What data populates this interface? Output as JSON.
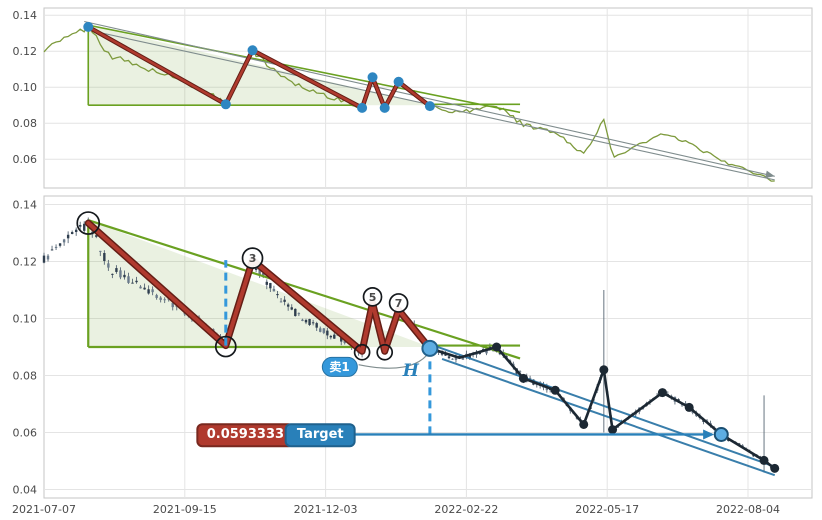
{
  "chart_data": {
    "type": "candlestick",
    "title": "",
    "x_ticks": [
      "2021-07-07",
      "2021-09-15",
      "2021-12-03",
      "2022-02-22",
      "2022-05-17",
      "2022-08-04"
    ],
    "overview": {
      "y_ticks": [
        0.14,
        0.12,
        0.1,
        0.08,
        0.06
      ],
      "y_domain": [
        0.044,
        0.144
      ],
      "grid": true
    },
    "main": {
      "y_ticks": [
        0.14,
        0.12,
        0.1,
        0.08,
        0.06,
        0.04
      ],
      "y_domain": [
        0.037,
        0.143
      ],
      "grid": true
    },
    "bar_interval_days": 2,
    "price_path": [
      [
        "2021-07-07",
        0.121
      ],
      [
        "2021-07-17",
        0.1265
      ],
      [
        "2021-07-29",
        0.1335
      ],
      [
        "2021-08-09",
        0.1175
      ],
      [
        "2021-08-21",
        0.1125
      ],
      [
        "2021-09-04",
        0.1075
      ],
      [
        "2021-09-18",
        0.1015
      ],
      [
        "2021-09-29",
        0.0965
      ],
      [
        "2021-10-08",
        0.0905
      ],
      [
        "2021-10-23",
        0.1205
      ],
      [
        "2021-11-05",
        0.1085
      ],
      [
        "2021-11-19",
        0.1005
      ],
      [
        "2021-12-06",
        0.0945
      ],
      [
        "2021-12-24",
        0.0885
      ],
      [
        "2021-12-30",
        0.1055
      ],
      [
        "2022-01-06",
        0.0885
      ],
      [
        "2022-01-14",
        0.103
      ],
      [
        "2022-01-24",
        0.096
      ],
      [
        "2022-02-01",
        0.0895
      ],
      [
        "2022-02-18",
        0.086
      ],
      [
        "2022-03-12",
        0.09
      ],
      [
        "2022-03-28",
        0.079
      ],
      [
        "2022-04-16",
        0.0748
      ],
      [
        "2022-05-03",
        0.0628
      ],
      [
        "2022-05-15",
        0.082
      ],
      [
        "2022-05-20",
        0.061
      ],
      [
        "2022-06-17",
        0.074
      ],
      [
        "2022-07-02",
        0.0688
      ],
      [
        "2022-07-20",
        0.0593
      ],
      [
        "2022-08-13",
        0.0502
      ],
      [
        "2022-08-19",
        0.0474
      ]
    ],
    "wick_spikes": [
      {
        "date": "2022-05-15",
        "high": 0.11,
        "low": 0.06
      },
      {
        "date": "2022-08-13",
        "high": 0.073,
        "low": 0.046
      }
    ],
    "zigzag_red": [
      [
        "2021-07-29",
        0.1335
      ],
      [
        "2021-10-08",
        0.0905
      ],
      [
        "2021-10-23",
        0.1205
      ],
      [
        "2021-12-24",
        0.0885
      ],
      [
        "2021-12-30",
        0.1055
      ],
      [
        "2022-01-06",
        0.0885
      ],
      [
        "2022-01-14",
        0.103
      ],
      [
        "2022-02-01",
        0.0895
      ]
    ],
    "zigzag_black": [
      [
        "2022-02-01",
        0.0895
      ],
      [
        "2022-02-18",
        0.0862
      ],
      [
        "2022-03-12",
        0.09
      ],
      [
        "2022-03-28",
        0.079
      ],
      [
        "2022-04-16",
        0.0748
      ],
      [
        "2022-05-03",
        0.0628
      ],
      [
        "2022-05-15",
        0.082
      ],
      [
        "2022-05-20",
        0.061
      ],
      [
        "2022-06-17",
        0.074
      ],
      [
        "2022-07-02",
        0.0688
      ],
      [
        "2022-07-20",
        0.0593
      ],
      [
        "2022-08-13",
        0.0502
      ],
      [
        "2022-08-19",
        0.0474
      ]
    ],
    "zigzag_black_dots": [
      [
        "2022-03-12",
        0.09
      ],
      [
        "2022-03-28",
        0.079
      ],
      [
        "2022-04-16",
        0.0748
      ],
      [
        "2022-05-03",
        0.0628
      ],
      [
        "2022-05-15",
        0.082
      ],
      [
        "2022-05-20",
        0.061
      ],
      [
        "2022-06-17",
        0.074
      ],
      [
        "2022-07-02",
        0.0688
      ],
      [
        "2022-08-13",
        0.0502
      ],
      [
        "2022-08-19",
        0.0474
      ]
    ],
    "triangle": {
      "apex": [
        "2021-07-29",
        0.1345
      ],
      "end": [
        "2022-02-01",
        0.09
      ],
      "base_y": 0.09,
      "base_to": "2021-12-26",
      "ext_end": [
        "2022-03-26",
        0.086
      ],
      "shelf_y": 0.0905,
      "shelf_from": "2022-02-01",
      "shelf_to": "2022-03-26"
    },
    "channel_upper": [
      [
        "2022-02-01",
        0.091
      ],
      [
        "2022-08-19",
        0.048
      ]
    ],
    "channel_lower": [
      [
        "2022-02-08",
        0.0858
      ],
      [
        "2022-08-19",
        0.045
      ]
    ],
    "overview_trendlines": [
      [
        [
          "2021-07-27",
          0.1365
        ],
        [
          "2022-08-19",
          0.0505
        ]
      ],
      [
        [
          "2021-07-30",
          0.1315
        ],
        [
          "2022-08-19",
          0.0485
        ]
      ]
    ],
    "curve": [
      [
        "2021-12-22",
        0.0838
      ],
      [
        "2022-01-17",
        0.083
      ],
      [
        "2022-02-01",
        0.0885
      ]
    ],
    "pivots": [
      {
        "label": "",
        "date": "2021-07-29",
        "price": 0.1335,
        "r": 11,
        "dy": 0
      },
      {
        "label": "",
        "date": "2021-10-08",
        "price": 0.0905,
        "r": 10,
        "dy": 1
      },
      {
        "label": "3",
        "date": "2021-10-23",
        "price": 0.1205,
        "r": 10,
        "dy": -2
      },
      {
        "label": "",
        "date": "2021-12-24",
        "price": 0.0885,
        "r": 7.5,
        "dy": 1
      },
      {
        "label": "5",
        "date": "2021-12-30",
        "price": 0.1055,
        "r": 9,
        "dy": -6
      },
      {
        "label": "",
        "date": "2022-01-06",
        "price": 0.0885,
        "r": 7.5,
        "dy": 1
      },
      {
        "label": "7",
        "date": "2022-01-14",
        "price": 0.103,
        "r": 9,
        "dy": -7
      }
    ],
    "special_markers": {
      "breakout": {
        "date": "2022-02-01",
        "price": 0.0895
      },
      "target_hit": {
        "date": "2022-07-20",
        "price": 0.0593
      }
    },
    "dashed_lines": [
      {
        "date": "2021-10-08",
        "from": 0.0905,
        "to": 0.1205
      },
      {
        "date": "2022-02-01",
        "from": 0.0895,
        "to": 0.0593
      }
    ],
    "target_line": {
      "price": 0.0593,
      "from": "2021-12-19",
      "to": "2022-07-16"
    },
    "annotations": {
      "price_label": "0.0593333",
      "target_label": "Target",
      "sell_label": "卖1",
      "h_label": "H",
      "target_value": 0.0593333,
      "price_badge_anchor": {
        "date": "2021-10-19",
        "price": 0.059
      },
      "target_badge_anchor": {
        "date": "2021-11-30",
        "price": 0.059
      },
      "sell_badge_anchor": {
        "date": "2021-12-11",
        "price": 0.083
      },
      "h_label_anchor": {
        "date": "2022-01-21",
        "price": 0.0816
      }
    },
    "colors": {
      "grid": "#e4e4e4",
      "border": "#c5c5c5",
      "axis_text": "#4a4a4a",
      "line": "#7d9a3c",
      "triangle": "#6aa121",
      "triangle_fill": "rgba(122,170,70,0.16)",
      "zigzag_red": "#b03a2e",
      "zigzag_red_dark": "#641e16",
      "zigzag_black": "#1c2833",
      "blue": "#2980b9",
      "blue_light": "#5dade2",
      "dashed_blue": "#3498db",
      "dot_blue": "#2e86c1",
      "trendline": "#7f8c8d",
      "candle_up": "#6b7b8c",
      "candle_down": "#2f3e4e",
      "wick": "#566573"
    }
  }
}
